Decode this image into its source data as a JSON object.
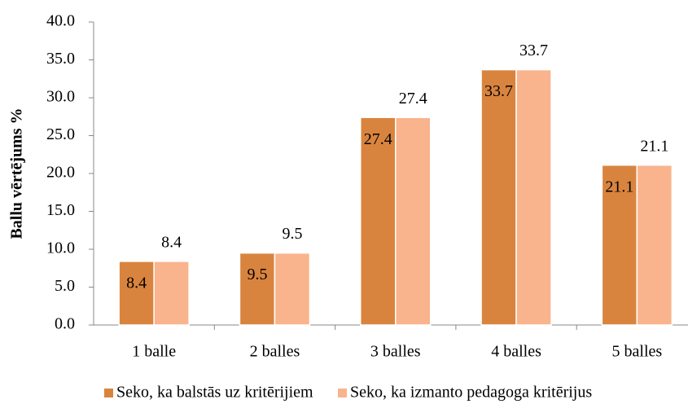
{
  "chart_data": {
    "type": "bar",
    "y_axis_label": "Ballu vērtējums %",
    "categories": [
      "1 balle",
      "2 balles",
      "3 balles",
      "4 balles",
      "5 balles"
    ],
    "series": [
      {
        "name": "Seko, ka balstās uz kritērijiem",
        "color": "#d9843e",
        "values": [
          8.4,
          9.5,
          27.4,
          33.7,
          21.1
        ]
      },
      {
        "name": "Seko, ka izmanto pedagoga kritērijus",
        "color": "#f9b48d",
        "values": [
          8.4,
          9.5,
          27.4,
          33.7,
          21.1
        ]
      }
    ],
    "ylim": [
      0,
      40
    ],
    "yticks": [
      {
        "value": 0,
        "label": "0.0"
      },
      {
        "value": 5,
        "label": "5.0"
      },
      {
        "value": 10,
        "label": "10.0"
      },
      {
        "value": 15,
        "label": "15.0"
      },
      {
        "value": 20,
        "label": "20.0"
      },
      {
        "value": 25,
        "label": "25.0"
      },
      {
        "value": 30,
        "label": "30.0"
      },
      {
        "value": 35,
        "label": "35.0"
      },
      {
        "value": 40,
        "label": "40.0"
      }
    ],
    "grid": false,
    "legend": "bottom"
  }
}
